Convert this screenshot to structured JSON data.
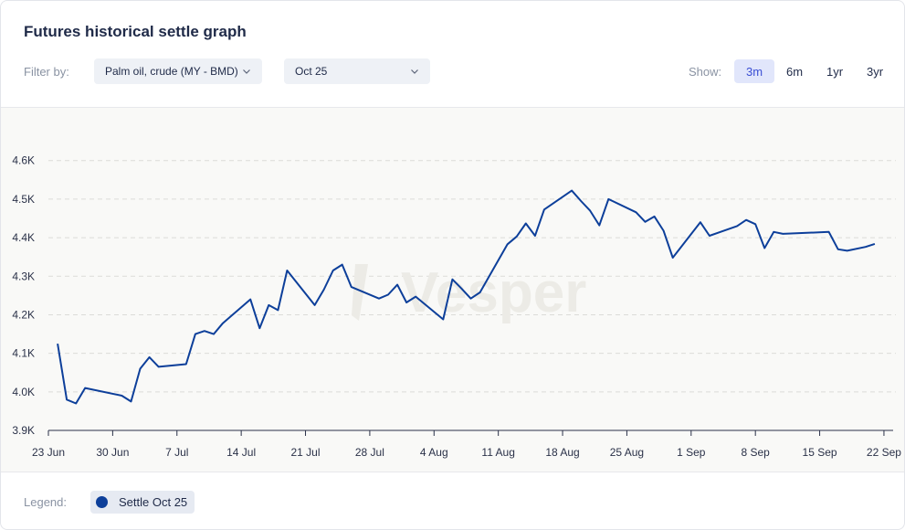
{
  "header": {
    "title": "Futures historical settle graph"
  },
  "filter": {
    "label": "Filter by:",
    "commodity": "Palm oil, crude (MY - BMD)",
    "contract": "Oct 25"
  },
  "range": {
    "label": "Show:",
    "options": [
      "3m",
      "6m",
      "1yr",
      "3yr"
    ],
    "active": "3m"
  },
  "legend": {
    "label": "Legend:",
    "item": "Settle Oct 25"
  },
  "watermark": "Vesper",
  "colors": {
    "line": "#0d3f9a",
    "active_range": "#3b4fd4"
  },
  "chart_data": {
    "type": "line",
    "x_tick_labels": [
      "23 Jun",
      "30 Jun",
      "7 Jul",
      "14 Jul",
      "21 Jul",
      "28 Jul",
      "4 Aug",
      "11 Aug",
      "18 Aug",
      "25 Aug",
      "1 Sep",
      "8 Sep",
      "15 Sep",
      "22 Sep"
    ],
    "y_tick_labels": [
      "3.9K",
      "4.0K",
      "4.1K",
      "4.2K",
      "4.3K",
      "4.4K",
      "4.5K",
      "4.6K"
    ],
    "y_ticks": [
      3900,
      4000,
      4100,
      4200,
      4300,
      4400,
      4500,
      4600
    ],
    "ylim": [
      3900,
      4680
    ],
    "xlim_days": [
      0,
      92
    ],
    "grid": "horizontal dashed",
    "series": [
      {
        "name": "Settle Oct 25",
        "points": [
          [
            1,
            4125
          ],
          [
            2,
            3980
          ],
          [
            3,
            3970
          ],
          [
            4,
            4010
          ],
          [
            8,
            3990
          ],
          [
            9,
            3975
          ],
          [
            10,
            4060
          ],
          [
            11,
            4090
          ],
          [
            12,
            4065
          ],
          [
            15,
            4072
          ],
          [
            16,
            4150
          ],
          [
            17,
            4158
          ],
          [
            18,
            4150
          ],
          [
            19,
            4178
          ],
          [
            22,
            4240
          ],
          [
            23,
            4165
          ],
          [
            24,
            4225
          ],
          [
            25,
            4212
          ],
          [
            26,
            4315
          ],
          [
            29,
            4225
          ],
          [
            30,
            4265
          ],
          [
            31,
            4315
          ],
          [
            32,
            4330
          ],
          [
            33,
            4272
          ],
          [
            36,
            4242
          ],
          [
            37,
            4252
          ],
          [
            38,
            4278
          ],
          [
            39,
            4232
          ],
          [
            40,
            4247
          ],
          [
            43,
            4188
          ],
          [
            44,
            4292
          ],
          [
            45,
            4268
          ],
          [
            46,
            4242
          ],
          [
            47,
            4258
          ],
          [
            50,
            4383
          ],
          [
            51,
            4403
          ],
          [
            52,
            4437
          ],
          [
            53,
            4405
          ],
          [
            54,
            4473
          ],
          [
            57,
            4522
          ],
          [
            58,
            4495
          ],
          [
            59,
            4470
          ],
          [
            60,
            4432
          ],
          [
            61,
            4500
          ],
          [
            64,
            4466
          ],
          [
            65,
            4441
          ],
          [
            66,
            4455
          ],
          [
            67,
            4418
          ],
          [
            68,
            4348
          ],
          [
            71,
            4440
          ],
          [
            72,
            4405
          ],
          [
            75,
            4430
          ],
          [
            76,
            4446
          ],
          [
            77,
            4435
          ],
          [
            78,
            4373
          ],
          [
            79,
            4415
          ],
          [
            80,
            4410
          ],
          [
            85,
            4415
          ],
          [
            86,
            4370
          ],
          [
            87,
            4366
          ],
          [
            89,
            4376
          ],
          [
            90,
            4384
          ]
        ]
      }
    ]
  }
}
